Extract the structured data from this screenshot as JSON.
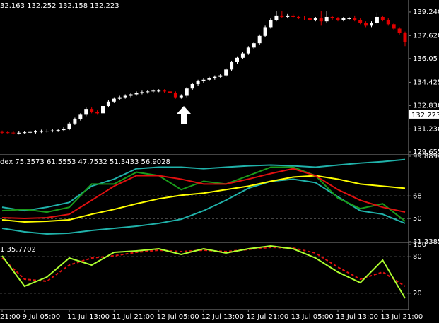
{
  "chart_data": [
    {
      "type": "candlestick",
      "header": "32.163 132.252 132.158 132.223",
      "up_color": "#ffffff",
      "down_color": "#e00000",
      "ylim": [
        129.46,
        140.06
      ],
      "yticks": [
        {
          "value": 139.24,
          "label": "139.240"
        },
        {
          "value": 137.62,
          "label": "137.620"
        },
        136.05,
        134.425,
        {
          "value": 132.83,
          "label": "132.830"
        },
        {
          "value": 131.23,
          "label": "131.230"
        },
        129.655
      ],
      "bid": 132.223,
      "open": [
        131.02,
        131.0,
        130.98,
        130.95,
        130.97,
        131.0,
        131.02,
        131.05,
        131.08,
        131.1,
        131.12,
        131.15,
        131.25,
        131.6,
        131.9,
        132.2,
        132.6,
        132.4,
        132.3,
        132.8,
        133.1,
        133.3,
        133.4,
        133.5,
        133.6,
        133.7,
        133.75,
        133.8,
        133.85,
        133.85,
        133.8,
        133.7,
        133.4,
        133.5,
        134.0,
        134.3,
        134.5,
        134.6,
        134.7,
        134.8,
        134.9,
        135.3,
        135.8,
        136.1,
        136.4,
        136.8,
        137.1,
        137.6,
        138.2,
        138.7,
        139.0,
        138.9,
        139.0,
        138.9,
        138.85,
        138.8,
        138.7,
        138.8,
        138.6,
        138.9,
        138.8,
        138.7,
        138.8,
        138.8,
        138.7,
        138.5,
        138.3,
        138.5,
        138.9,
        138.7,
        138.4,
        138.1,
        137.8
      ],
      "high": [
        131.12,
        131.1,
        131.08,
        131.07,
        131.1,
        131.12,
        131.15,
        131.18,
        131.2,
        131.22,
        131.25,
        131.35,
        131.7,
        132.0,
        132.3,
        132.7,
        132.7,
        132.5,
        132.9,
        133.2,
        133.4,
        133.5,
        133.6,
        133.7,
        133.8,
        133.85,
        133.9,
        133.95,
        133.95,
        133.95,
        133.9,
        133.8,
        133.6,
        134.1,
        134.4,
        134.6,
        134.7,
        134.8,
        134.9,
        135.0,
        135.4,
        135.9,
        136.2,
        136.5,
        136.9,
        137.2,
        137.7,
        138.3,
        138.8,
        139.3,
        139.3,
        139.1,
        139.1,
        139.0,
        138.95,
        138.9,
        138.9,
        139.3,
        139.3,
        139.0,
        138.9,
        138.9,
        138.9,
        139.0,
        138.8,
        138.6,
        138.6,
        139.2,
        139.0,
        138.8,
        138.5,
        138.2,
        137.9
      ],
      "low": [
        130.9,
        130.88,
        130.85,
        130.85,
        130.87,
        130.9,
        130.92,
        130.95,
        130.98,
        131.0,
        131.02,
        131.05,
        131.15,
        131.5,
        131.8,
        132.1,
        132.3,
        132.2,
        132.2,
        132.7,
        133.0,
        133.2,
        133.3,
        133.4,
        133.5,
        133.6,
        133.65,
        133.7,
        133.75,
        133.7,
        133.6,
        133.3,
        133.3,
        133.4,
        133.9,
        134.2,
        134.4,
        134.5,
        134.6,
        134.7,
        134.8,
        135.2,
        135.7,
        136.0,
        136.3,
        136.7,
        137.0,
        137.5,
        138.1,
        138.6,
        138.8,
        138.8,
        138.8,
        138.75,
        138.7,
        138.6,
        138.6,
        138.3,
        138.5,
        138.7,
        138.6,
        138.6,
        138.7,
        138.6,
        138.4,
        138.2,
        138.2,
        138.4,
        138.6,
        138.3,
        138.0,
        137.7,
        136.9
      ],
      "close": [
        131.0,
        130.98,
        130.95,
        130.97,
        131.0,
        131.02,
        131.05,
        131.08,
        131.1,
        131.12,
        131.15,
        131.25,
        131.6,
        131.9,
        132.2,
        132.6,
        132.4,
        132.3,
        132.8,
        133.1,
        133.3,
        133.4,
        133.5,
        133.6,
        133.7,
        133.75,
        133.8,
        133.85,
        133.85,
        133.8,
        133.7,
        133.4,
        133.5,
        134.0,
        134.3,
        134.5,
        134.6,
        134.7,
        134.8,
        134.9,
        135.3,
        135.8,
        136.1,
        136.4,
        136.8,
        137.1,
        137.6,
        138.2,
        138.7,
        139.0,
        138.9,
        139.0,
        138.9,
        138.85,
        138.8,
        138.7,
        138.8,
        138.6,
        138.9,
        138.8,
        138.7,
        138.8,
        138.8,
        138.7,
        138.5,
        138.3,
        138.5,
        138.9,
        138.7,
        138.4,
        138.1,
        137.8,
        137.2
      ]
    },
    {
      "type": "line",
      "header": "dex 75.3573 61.5553 47.7532 51.3433 56.9028",
      "ylim": [
        31.3385,
        99.8894
      ],
      "yticks": [
        99.8894,
        68,
        50,
        31.3385
      ],
      "grid": true,
      "series": [
        {
          "color": "#20b2aa",
          "values": [
            59,
            56.2,
            59,
            62.9,
            75.9,
            81.5,
            89.9,
            91.1,
            91.1,
            89.9,
            91.1,
            92.2,
            92.8,
            92.2,
            91.1,
            92.8,
            94.4,
            95.6,
            97.3
          ]
        },
        {
          "color": "#20b2aa",
          "values": [
            42.1,
            39.3,
            37.6,
            38.2,
            40.4,
            42.1,
            43.8,
            46.1,
            49.4,
            56.2,
            64.6,
            74.2,
            79.8,
            81.5,
            78.7,
            67.4,
            56.2,
            53.4,
            46.1
          ]
        },
        {
          "color": "#ffff00",
          "values": [
            48.9,
            47.2,
            47.8,
            48.9,
            53.4,
            57.3,
            61.8,
            65.8,
            68.6,
            70.3,
            73.1,
            75.9,
            79.8,
            83.2,
            84.3,
            81.5,
            77.6,
            75.9,
            74.2
          ]
        },
        {
          "color": "#1a9a1a",
          "values": [
            56.2,
            57.3,
            55.1,
            59,
            77.6,
            77.6,
            87.1,
            84.3,
            73.1,
            79.8,
            77.6,
            84.3,
            91.1,
            91.1,
            84.3,
            66.3,
            57.9,
            61.8,
            47.8
          ]
        },
        {
          "color": "#e01010",
          "values": [
            50.6,
            50,
            50.6,
            53.4,
            64.6,
            75.9,
            84.3,
            84.3,
            81.5,
            77.6,
            77.6,
            81.5,
            86,
            89.9,
            84.3,
            73.1,
            64.6,
            59,
            55.1
          ]
        }
      ]
    },
    {
      "type": "line",
      "header": "1 35.7702",
      "ylim": [
        0,
        100
      ],
      "yticks": [
        100,
        80,
        20
      ],
      "grid": true,
      "categories": [
        "21:00",
        "9 Jul 05:00",
        null,
        "11 Jul 13:00",
        null,
        "11 Jul 21:00",
        null,
        "12 Jul 05:00",
        null,
        "12 Jul 13:00",
        null,
        "12 Jul 21:00",
        null,
        "13 Jul 05:00",
        null,
        "13 Jul 13:00",
        null,
        "13 Jul 21:00",
        null
      ],
      "series": [
        {
          "color": "#e01010",
          "dashed": true,
          "values": [
            77.9,
            43,
            39.5,
            66.3,
            77.9,
            81.4,
            87.2,
            90.7,
            88.4,
            90.7,
            88.4,
            91.9,
            95.3,
            94.2,
            86,
            62.8,
            43,
            54.7,
            31.4
          ]
        },
        {
          "color": "#adff2f",
          "values": [
            81.4,
            31.4,
            46.5,
            77.9,
            66.3,
            87.2,
            89.5,
            93,
            83.7,
            93,
            86,
            93,
            97.7,
            93,
            77.9,
            54.7,
            37.2,
            74.4,
            11.6
          ]
        }
      ]
    }
  ]
}
